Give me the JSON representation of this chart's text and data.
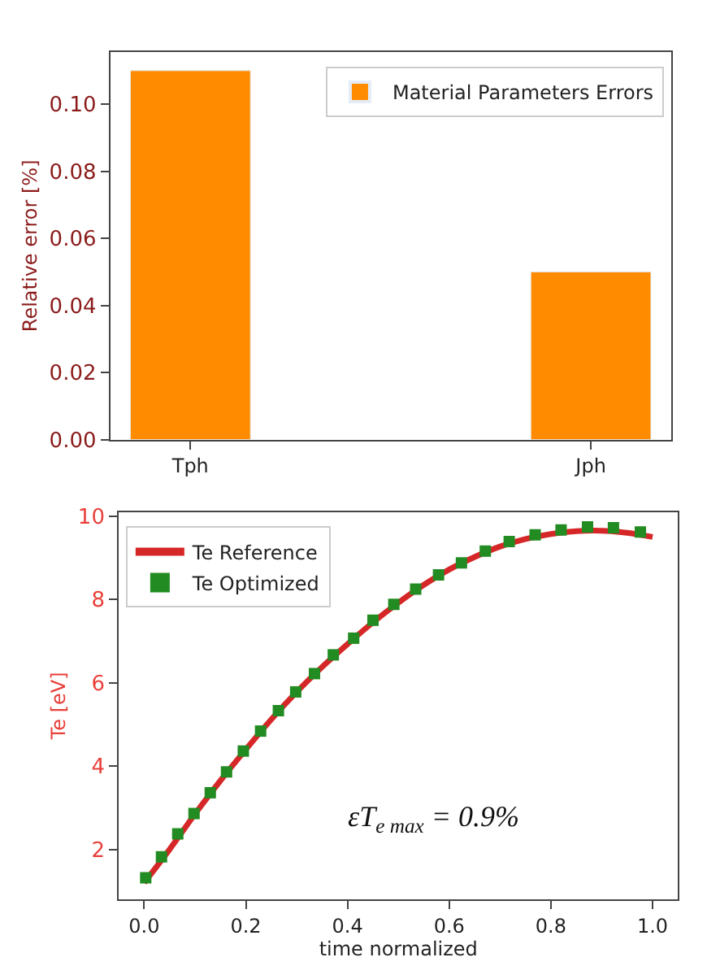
{
  "chart_data": [
    {
      "type": "bar",
      "categories": [
        "Tph",
        "Jph"
      ],
      "ylabel": "Relative error [%]",
      "legend": "top right",
      "series": [
        {
          "name": "Material Parameters Errors",
          "color": "#ff8c00",
          "values": [
            0.11,
            0.05
          ]
        }
      ],
      "ylim": [
        0,
        0.1155
      ],
      "yticks": [
        {
          "value": 0,
          "label": "0.00"
        },
        {
          "value": 0.02,
          "label": "0.02"
        },
        {
          "value": 0.04,
          "label": "0.04"
        },
        {
          "value": 0.06,
          "label": "0.06"
        },
        {
          "value": 0.08,
          "label": "0.08"
        },
        {
          "value": 0.1,
          "label": "0.10"
        }
      ]
    },
    {
      "type": "line",
      "xlabel": "time normalized",
      "ylabel": "Te [eV]",
      "legend": "top left",
      "xlim": [
        -0.05,
        1.05
      ],
      "ylim": [
        0.8,
        10.1
      ],
      "xticks": [
        {
          "value": 0,
          "label": "0.0"
        },
        {
          "value": 0.2,
          "label": "0.2"
        },
        {
          "value": 0.4,
          "label": "0.4"
        },
        {
          "value": 0.6,
          "label": "0.6"
        },
        {
          "value": 0.8,
          "label": "0.8"
        },
        {
          "value": 1,
          "label": "1.0"
        }
      ],
      "yticks": [
        2,
        4,
        6,
        8,
        10
      ],
      "annotations": [
        "εT$_{e max}$ = 0.9%"
      ],
      "series": [
        {
          "name": "Te Reference",
          "type": "line",
          "marker": "none",
          "line_style": "solid",
          "color": "#d62728",
          "x": [
            0,
            0.05,
            0.1,
            0.15,
            0.2,
            0.25,
            0.3,
            0.35,
            0.4,
            0.45,
            0.5,
            0.55,
            0.6,
            0.65,
            0.7,
            0.75,
            0.8,
            0.85,
            0.9,
            0.95,
            1.0
          ],
          "values": [
            1.2,
            2.0,
            2.85,
            3.65,
            4.4,
            5.12,
            5.78,
            6.38,
            6.93,
            7.45,
            7.92,
            8.35,
            8.72,
            9.02,
            9.27,
            9.45,
            9.57,
            9.64,
            9.65,
            9.6,
            9.5
          ]
        },
        {
          "name": "Te Optimized",
          "type": "scatter",
          "marker": "square",
          "color": "#228b22",
          "x": [
            0.003,
            0.034,
            0.066,
            0.098,
            0.13,
            0.162,
            0.195,
            0.229,
            0.264,
            0.298,
            0.335,
            0.372,
            0.412,
            0.45,
            0.491,
            0.534,
            0.579,
            0.624,
            0.671,
            0.718,
            0.769,
            0.82,
            0.872,
            0.923,
            0.976
          ],
          "values": [
            1.32,
            1.82,
            2.37,
            2.86,
            3.36,
            3.86,
            4.36,
            4.84,
            5.33,
            5.78,
            6.22,
            6.67,
            7.07,
            7.5,
            7.88,
            8.25,
            8.59,
            8.88,
            9.16,
            9.39,
            9.55,
            9.67,
            9.74,
            9.72,
            9.62
          ]
        }
      ]
    }
  ]
}
